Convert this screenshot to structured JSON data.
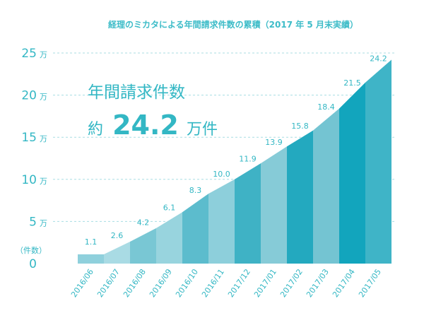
{
  "chart_data": {
    "type": "area",
    "title": "経理のミカタによる年間請求件数の累積（2017 年 5 月末実績）",
    "headline": {
      "line1": "年間請求件数",
      "prefix": "約",
      "value": "24.2",
      "suffix": "万件"
    },
    "ylabel": "（件数）",
    "y_unit": "万",
    "ylim": [
      0,
      25
    ],
    "y_ticks": [
      0,
      5,
      10,
      15,
      20,
      25
    ],
    "grid": true,
    "categories": [
      "2016/06",
      "2016/07",
      "2016/08",
      "2016/09",
      "2016/10",
      "2016/11",
      "2017/12",
      "2017/01",
      "2017/02",
      "2017/03",
      "2017/04",
      "2017/05"
    ],
    "values": [
      1.1,
      2.6,
      4.2,
      6.1,
      8.3,
      10.0,
      11.9,
      13.9,
      15.8,
      18.4,
      21.5,
      24.2
    ],
    "labels": [
      "1.1",
      "2.6",
      "4.2",
      "6.1",
      "8.3",
      "10.0",
      "11.9",
      "13.9",
      "15.8",
      "18.4",
      "21.5",
      "24.2"
    ]
  },
  "colors": {
    "title": "#3dbcc8",
    "axis_text": "#33b7c4",
    "grid": "#a8dde3",
    "segments": [
      "#8fd0dc",
      "#a9dbe4",
      "#79c7d4",
      "#98d4de",
      "#5cbccd",
      "#8dcfdb",
      "#3fb2c5",
      "#86cbd7",
      "#23a9bf",
      "#74c4d2",
      "#12a5bd",
      "#3fb4c7"
    ]
  }
}
